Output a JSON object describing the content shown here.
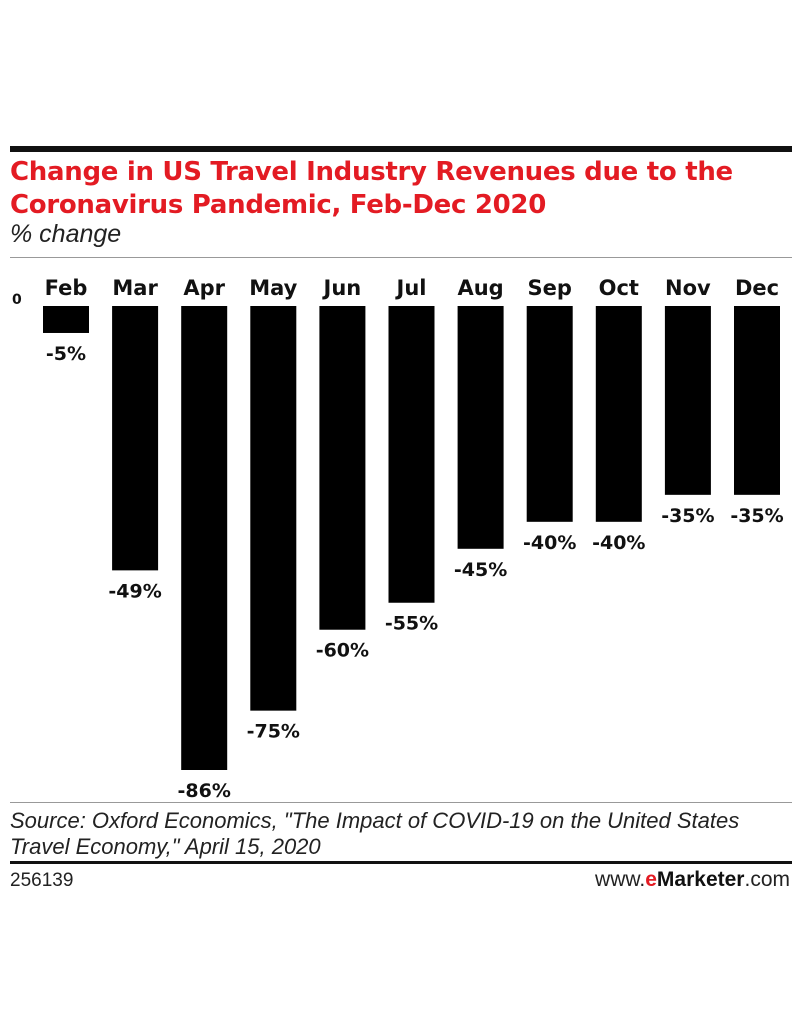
{
  "header": {
    "title": "Change in US Travel Industry Revenues due to the Coronavirus Pandemic, Feb-Dec 2020",
    "subtitle": "% change"
  },
  "chart_data": {
    "type": "bar",
    "title": "Change in US Travel Industry Revenues due to the Coronavirus Pandemic, Feb-Dec 2020",
    "subtitle": "% change",
    "xlabel": "",
    "ylabel": "",
    "categories": [
      "Feb",
      "Mar",
      "Apr",
      "May",
      "Jun",
      "Jul",
      "Aug",
      "Sep",
      "Oct",
      "Nov",
      "Dec"
    ],
    "values": [
      -5,
      -49,
      -86,
      -75,
      -60,
      -55,
      -45,
      -40,
      -40,
      -35,
      -35
    ],
    "value_labels": [
      "-5%",
      "-49%",
      "-86%",
      "-75%",
      "-60%",
      "-55%",
      "-45%",
      "-40%",
      "-40%",
      "-35%",
      "-35%"
    ],
    "zero_label": "0",
    "ylim": [
      -86,
      0
    ],
    "grid": false,
    "legend": "none",
    "bar_color": "#000000"
  },
  "footer": {
    "source": "Source: Oxford Economics, \"The Impact of COVID-19 on the United States Travel Economy,\" April 15, 2020",
    "chart_id": "256139",
    "brand_prefix": "www.",
    "brand_e": "e",
    "brand_name": "Marketer",
    "brand_suffix": ".com"
  },
  "colors": {
    "title": "#e31b23",
    "bars": "#000000",
    "brand_accent": "#e31b23"
  }
}
